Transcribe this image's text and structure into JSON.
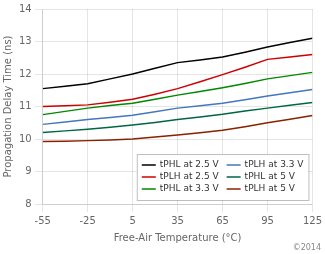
{
  "chart_data": {
    "type": "line",
    "xlabel": "Free-Air Temperature (°C)",
    "ylabel": "Propagation Delay Time (ns)",
    "x": [
      -55,
      -40,
      -25,
      -10,
      5,
      20,
      35,
      50,
      65,
      80,
      95,
      110,
      125
    ],
    "xlim": [
      -55,
      125
    ],
    "xticks": [
      -55,
      -25,
      5,
      35,
      65,
      95,
      125
    ],
    "ylim": [
      8,
      14
    ],
    "yticks": [
      8,
      9,
      10,
      11,
      12,
      13,
      14
    ],
    "grid": true,
    "legend": "lower right",
    "annotations": [
      "©2014"
    ],
    "series": [
      {
        "name": "tPHL at 2.5 V",
        "color": "#000000",
        "values": [
          11.55,
          11.62,
          11.7,
          11.85,
          12.0,
          12.18,
          12.35,
          12.43,
          12.52,
          12.67,
          12.83,
          12.97,
          13.1
        ]
      },
      {
        "name": "tPLH at 2.5 V",
        "color": "#cc0000",
        "values": [
          11.0,
          11.02,
          11.05,
          11.13,
          11.22,
          11.38,
          11.55,
          11.76,
          11.98,
          12.21,
          12.45,
          12.52,
          12.6
        ]
      },
      {
        "name": "tPHL at 3.3 V",
        "color": "#008800",
        "values": [
          10.75,
          10.85,
          10.95,
          11.03,
          11.1,
          11.22,
          11.35,
          11.46,
          11.58,
          11.71,
          11.85,
          11.95,
          12.05
        ]
      },
      {
        "name": "tPLH at 3.3 V",
        "color": "#4477bb",
        "values": [
          10.45,
          10.52,
          10.6,
          10.66,
          10.73,
          10.84,
          10.95,
          11.02,
          11.1,
          11.21,
          11.32,
          11.42,
          11.52
        ]
      },
      {
        "name": "tPHL at 5 V",
        "color": "#006644",
        "values": [
          10.2,
          10.25,
          10.3,
          10.36,
          10.43,
          10.51,
          10.6,
          10.68,
          10.76,
          10.86,
          10.95,
          11.04,
          11.12
        ]
      },
      {
        "name": "tPLH at 5 V",
        "color": "#882200",
        "values": [
          9.92,
          9.93,
          9.95,
          9.97,
          10.0,
          10.06,
          10.12,
          10.19,
          10.27,
          10.38,
          10.5,
          10.61,
          10.72
        ]
      }
    ]
  }
}
